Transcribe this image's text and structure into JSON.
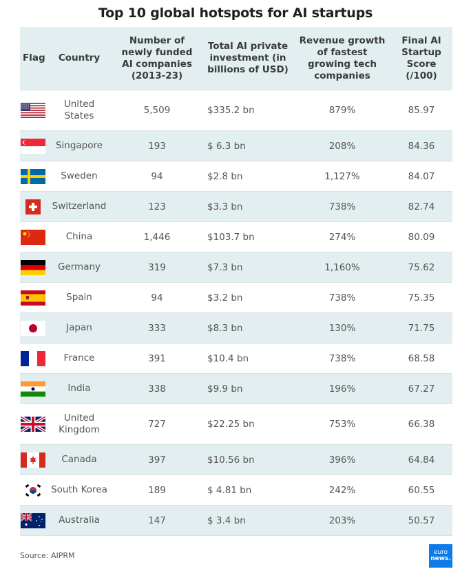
{
  "title": "Top 10 global hotspots for AI startups",
  "headers": {
    "flag": "Flag",
    "country": "Country",
    "companies": "Number of newly funded AI companies (2013-23)",
    "investment": "Total AI private investment (in billions of USD)",
    "revenue": "Revenue growth of fastest growing tech companies",
    "score": "Final AI Startup Score (/100)"
  },
  "rows": [
    {
      "flag": "us-flag-icon",
      "country": "United States",
      "companies": "5,509",
      "investment": "$335.2 bn",
      "revenue": "879%",
      "score": "85.97"
    },
    {
      "flag": "singapore-flag-icon",
      "country": "Singapore",
      "companies": "193",
      "investment": "$ 6.3 bn",
      "revenue": "208%",
      "score": "84.36"
    },
    {
      "flag": "sweden-flag-icon",
      "country": "Sweden",
      "companies": "94",
      "investment": "$2.8 bn",
      "revenue": "1,127%",
      "score": "84.07"
    },
    {
      "flag": "switzerland-flag-icon",
      "country": "Switzerland",
      "companies": "123",
      "investment": "$3.3 bn",
      "revenue": "738%",
      "score": "82.74"
    },
    {
      "flag": "china-flag-icon",
      "country": "China",
      "companies": "1,446",
      "investment": "$103.7 bn",
      "revenue": "274%",
      "score": "80.09"
    },
    {
      "flag": "germany-flag-icon",
      "country": "Germany",
      "companies": "319",
      "investment": "$7.3 bn",
      "revenue": "1,160%",
      "score": "75.62"
    },
    {
      "flag": "spain-flag-icon",
      "country": "Spain",
      "companies": "94",
      "investment": "$3.2 bn",
      "revenue": "738%",
      "score": "75.35"
    },
    {
      "flag": "japan-flag-icon",
      "country": "Japan",
      "companies": "333",
      "investment": "$8.3 bn",
      "revenue": "130%",
      "score": "71.75"
    },
    {
      "flag": "france-flag-icon",
      "country": "France",
      "companies": "391",
      "investment": "$10.4 bn",
      "revenue": "738%",
      "score": "68.58"
    },
    {
      "flag": "india-flag-icon",
      "country": "India",
      "companies": "338",
      "investment": "$9.9 bn",
      "revenue": "196%",
      "score": "67.27"
    },
    {
      "flag": "uk-flag-icon",
      "country": "United Kingdom",
      "companies": "727",
      "investment": "$22.25 bn",
      "revenue": "753%",
      "score": "66.38"
    },
    {
      "flag": "canada-flag-icon",
      "country": "Canada",
      "companies": "397",
      "investment": "$10.56 bn",
      "revenue": "396%",
      "score": "64.84"
    },
    {
      "flag": "south-korea-flag-icon",
      "country": "South Korea",
      "companies": "189",
      "investment": "$ 4.81 bn",
      "revenue": "242%",
      "score": "60.55"
    },
    {
      "flag": "australia-flag-icon",
      "country": "Australia",
      "companies": "147",
      "investment": "$ 3.4 bn",
      "revenue": "203%",
      "score": "50.57"
    }
  ],
  "source": "Source: AIPRM",
  "logo": {
    "line1": "euro",
    "line2": "news."
  },
  "colors": {
    "header_bg": "#e3eef0",
    "logo_bg": "#0d7be8"
  }
}
